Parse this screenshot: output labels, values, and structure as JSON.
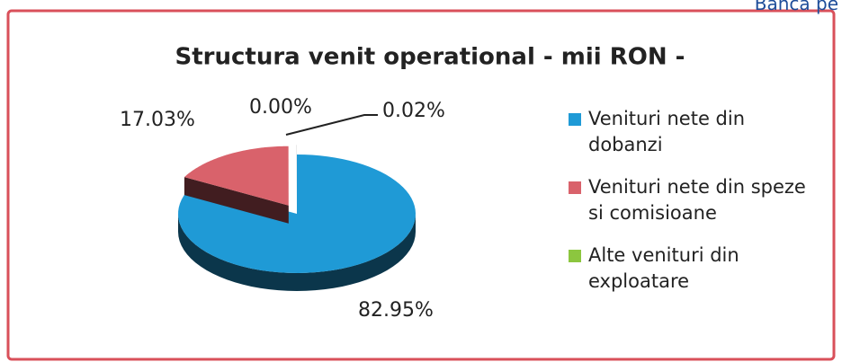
{
  "header": "Banca pe",
  "chart_data": {
    "type": "pie",
    "title": "Structura venit operational  - mii RON -",
    "categories": [
      "Venituri nete din dobanzi",
      "Venituri nete din speze si comisioane",
      "Alte venituri din exploatare",
      null
    ],
    "values": [
      82.95,
      17.03,
      0.0,
      0.02
    ],
    "value_labels": [
      "82.95%",
      "17.03%",
      "0.00%",
      "0.02%"
    ],
    "colors": [
      "#1f9ad6",
      "#d9626b",
      "#8cc63f",
      "#7f7f7f"
    ],
    "legend": "right"
  }
}
